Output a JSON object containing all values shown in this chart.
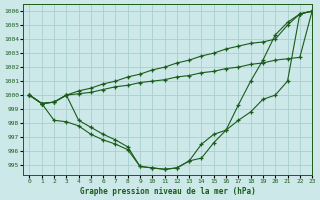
{
  "title": "Graphe pression niveau de la mer (hPa)",
  "bg_color": "#cce8e8",
  "grid_color": "#aad0d0",
  "line_color": "#1a5c1a",
  "xlim": [
    -0.5,
    23
  ],
  "ylim": [
    994.3,
    1006.5
  ],
  "yticks": [
    995,
    996,
    997,
    998,
    999,
    1000,
    1001,
    1002,
    1003,
    1004,
    1005,
    1006
  ],
  "xticks": [
    0,
    1,
    2,
    3,
    4,
    5,
    6,
    7,
    8,
    9,
    10,
    11,
    12,
    13,
    14,
    15,
    16,
    17,
    18,
    19,
    20,
    21,
    22,
    23
  ],
  "series": [
    [
      1000.0,
      999.4,
      999.5,
      1000.0,
      998.2,
      997.7,
      997.2,
      996.8,
      996.3,
      994.9,
      994.8,
      994.7,
      994.8,
      995.3,
      995.5,
      996.6,
      997.5,
      999.3,
      1001.0,
      1002.5,
      1004.3,
      1005.2,
      1005.8,
      1006.0
    ],
    [
      1000.0,
      999.4,
      999.5,
      1000.0,
      1000.1,
      1000.2,
      1000.4,
      1000.6,
      1000.7,
      1000.9,
      1001.0,
      1001.1,
      1001.3,
      1001.4,
      1001.6,
      1001.7,
      1001.9,
      1002.0,
      1002.2,
      1002.3,
      1002.5,
      1002.6,
      1002.7,
      1006.0
    ],
    [
      1000.0,
      999.4,
      999.5,
      1000.0,
      1000.3,
      1000.5,
      1000.8,
      1001.0,
      1001.3,
      1001.5,
      1001.8,
      1002.0,
      1002.3,
      1002.5,
      1002.8,
      1003.0,
      1003.3,
      1003.5,
      1003.7,
      1003.8,
      1004.0,
      1005.0,
      1005.8,
      1006.0
    ],
    [
      1000.0,
      999.4,
      998.2,
      998.1,
      997.8,
      997.2,
      996.8,
      996.5,
      996.1,
      994.9,
      994.8,
      994.7,
      994.8,
      995.3,
      996.5,
      997.2,
      997.5,
      998.2,
      998.8,
      999.7,
      1000.0,
      1001.0,
      1005.8,
      1006.0
    ]
  ]
}
